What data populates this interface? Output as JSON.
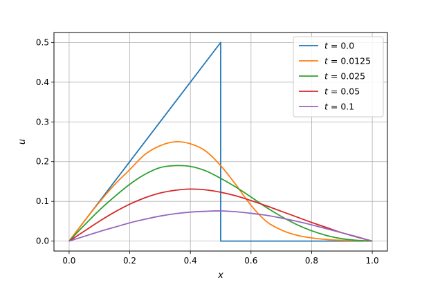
{
  "chart_data": {
    "type": "line",
    "xlabel": "x",
    "ylabel": "u",
    "xlim": [
      -0.05,
      1.05
    ],
    "ylim": [
      -0.025,
      0.525
    ],
    "xticks": [
      "0.0",
      "0.2",
      "0.4",
      "0.6",
      "0.8",
      "1.0"
    ],
    "yticks": [
      "0.0",
      "0.1",
      "0.2",
      "0.3",
      "0.4",
      "0.5"
    ],
    "grid": true,
    "legend_position": "top-right",
    "series": [
      {
        "name": "t = 0.0",
        "legend_var": "t",
        "legend_value": "= 0.0",
        "color": "#1f77b4",
        "x": [
          0.0,
          0.5,
          0.5,
          1.0
        ],
        "y": [
          0.0,
          0.5,
          0.0,
          0.0
        ]
      },
      {
        "name": "t = 0.0125",
        "legend_var": "t",
        "legend_value": "= 0.0125",
        "color": "#ff7f0e",
        "x": [
          0.0,
          0.05,
          0.1,
          0.15,
          0.2,
          0.25,
          0.3,
          0.35,
          0.4,
          0.45,
          0.5,
          0.55,
          0.6,
          0.65,
          0.7,
          0.75,
          0.8,
          0.85,
          0.9,
          0.95,
          1.0
        ],
        "y": [
          0.0,
          0.05,
          0.098,
          0.142,
          0.18,
          0.218,
          0.24,
          0.25,
          0.245,
          0.227,
          0.19,
          0.142,
          0.09,
          0.05,
          0.028,
          0.015,
          0.008,
          0.004,
          0.002,
          0.001,
          0.0
        ]
      },
      {
        "name": "t = 0.025",
        "legend_var": "t",
        "legend_value": "= 0.025",
        "color": "#2ca02c",
        "x": [
          0.0,
          0.05,
          0.1,
          0.15,
          0.2,
          0.25,
          0.3,
          0.35,
          0.4,
          0.45,
          0.5,
          0.55,
          0.6,
          0.65,
          0.7,
          0.75,
          0.8,
          0.85,
          0.9,
          0.95,
          1.0
        ],
        "y": [
          0.0,
          0.04,
          0.078,
          0.112,
          0.143,
          0.168,
          0.185,
          0.19,
          0.188,
          0.177,
          0.158,
          0.136,
          0.111,
          0.085,
          0.062,
          0.042,
          0.026,
          0.014,
          0.006,
          0.002,
          0.0
        ]
      },
      {
        "name": "t = 0.05",
        "legend_var": "t",
        "legend_value": "= 0.05",
        "color": "#d62728",
        "x": [
          0.0,
          0.05,
          0.1,
          0.15,
          0.2,
          0.25,
          0.3,
          0.35,
          0.4,
          0.45,
          0.5,
          0.55,
          0.6,
          0.65,
          0.7,
          0.75,
          0.8,
          0.85,
          0.9,
          0.95,
          1.0
        ],
        "y": [
          0.0,
          0.025,
          0.05,
          0.073,
          0.093,
          0.109,
          0.121,
          0.128,
          0.131,
          0.129,
          0.123,
          0.114,
          0.102,
          0.089,
          0.075,
          0.061,
          0.047,
          0.034,
          0.021,
          0.01,
          0.0
        ]
      },
      {
        "name": "t = 0.1",
        "legend_var": "t",
        "legend_value": "= 0.1",
        "color": "#9467bd",
        "x": [
          0.0,
          0.05,
          0.1,
          0.15,
          0.2,
          0.25,
          0.3,
          0.35,
          0.4,
          0.45,
          0.5,
          0.55,
          0.6,
          0.65,
          0.7,
          0.75,
          0.8,
          0.85,
          0.9,
          0.95,
          1.0
        ],
        "y": [
          0.0,
          0.012,
          0.024,
          0.035,
          0.046,
          0.055,
          0.063,
          0.069,
          0.073,
          0.075,
          0.076,
          0.074,
          0.07,
          0.065,
          0.058,
          0.05,
          0.041,
          0.031,
          0.021,
          0.011,
          0.0
        ]
      }
    ]
  }
}
